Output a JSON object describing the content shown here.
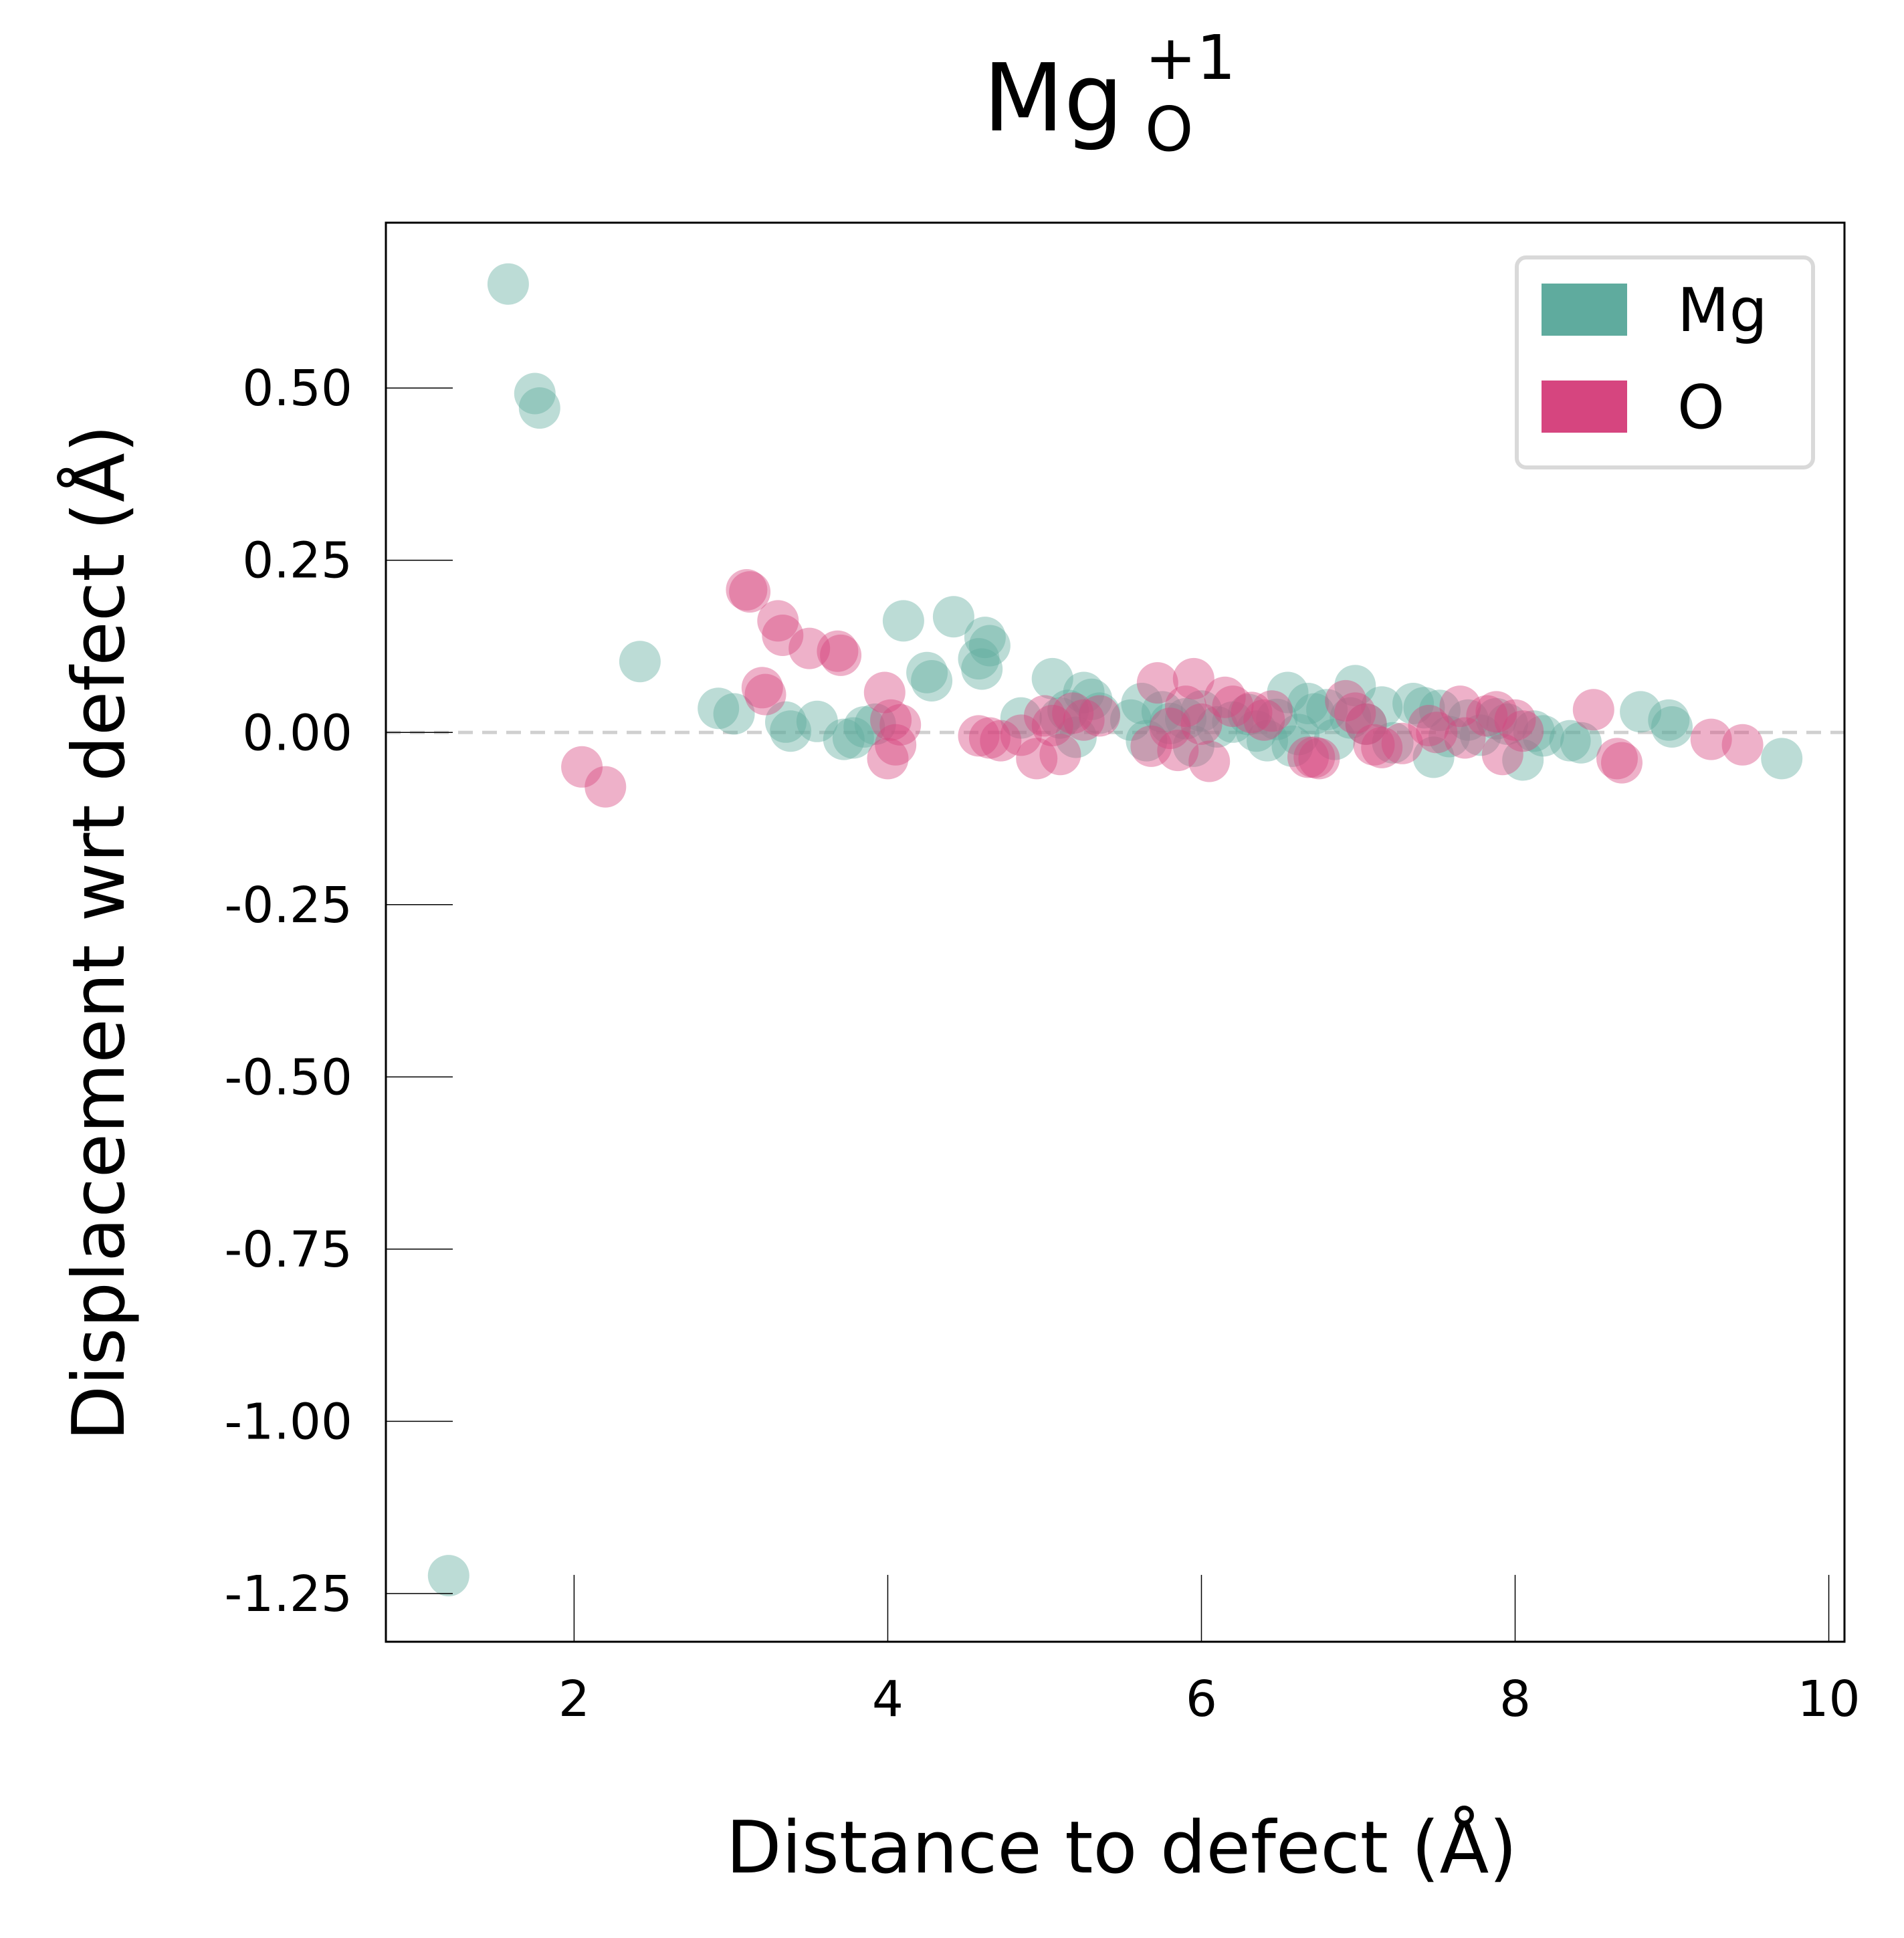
{
  "chart_data": {
    "type": "scatter",
    "title": {
      "base": "Mg",
      "superscript": "+1",
      "subscript": "O"
    },
    "xlabel": "Distance to defect (Å)",
    "ylabel": "Displacement wrt defect (Å)",
    "xlim": [
      0.8,
      10.1
    ],
    "ylim": [
      -1.32,
      0.74
    ],
    "xticks": [
      2,
      4,
      6,
      8,
      10
    ],
    "xtick_labels": [
      "2",
      "4",
      "6",
      "8",
      "10"
    ],
    "yticks": [
      0.5,
      0.25,
      0.0,
      -0.25,
      -0.5,
      -0.75,
      -1.0,
      -1.25
    ],
    "ytick_labels": [
      "0.50",
      "0.25",
      "0.00",
      "-0.25",
      "-0.50",
      "-0.75",
      "-1.00",
      "-1.25"
    ],
    "reference_line": {
      "y": 0,
      "style": "dashed",
      "color": "#d0d0d0"
    },
    "grid": false,
    "legend": {
      "placement": "top-right",
      "entries": [
        {
          "label": "Mg",
          "color": "#5fab9e"
        },
        {
          "label": "O",
          "color": "#d6457f"
        }
      ]
    },
    "series": [
      {
        "name": "Mg",
        "color": "#5fab9e",
        "points": [
          [
            1.2,
            -1.224
          ],
          [
            1.58,
            0.651
          ],
          [
            1.75,
            0.492
          ],
          [
            1.78,
            0.471
          ],
          [
            2.42,
            0.103
          ],
          [
            2.92,
            0.035
          ],
          [
            3.02,
            0.027
          ],
          [
            3.35,
            0.015
          ],
          [
            3.38,
            0.002
          ],
          [
            3.55,
            0.016
          ],
          [
            3.72,
            -0.01
          ],
          [
            3.78,
            -0.008
          ],
          [
            3.85,
            0.008
          ],
          [
            3.92,
            0.012
          ],
          [
            4.1,
            0.162
          ],
          [
            4.25,
            0.087
          ],
          [
            4.28,
            0.075
          ],
          [
            4.42,
            0.168
          ],
          [
            4.58,
            0.107
          ],
          [
            4.62,
            0.138
          ],
          [
            4.65,
            0.126
          ],
          [
            4.6,
            0.092
          ],
          [
            4.85,
            0.021
          ],
          [
            5.05,
            0.078
          ],
          [
            5.1,
            0.021
          ],
          [
            5.15,
            0.032
          ],
          [
            5.2,
            -0.007
          ],
          [
            5.25,
            0.058
          ],
          [
            5.3,
            0.048
          ],
          [
            5.35,
            0.028
          ],
          [
            5.55,
            0.018
          ],
          [
            5.62,
            0.042
          ],
          [
            5.65,
            -0.012
          ],
          [
            5.75,
            0.03
          ],
          [
            5.8,
            0.013
          ],
          [
            5.9,
            0.02
          ],
          [
            5.95,
            -0.02
          ],
          [
            6.0,
            0.031
          ],
          [
            6.1,
            0.008
          ],
          [
            6.2,
            0.015
          ],
          [
            6.3,
            0.026
          ],
          [
            6.35,
            0.002
          ],
          [
            6.42,
            -0.012
          ],
          [
            6.48,
            0.019
          ],
          [
            6.55,
            0.058
          ],
          [
            6.58,
            -0.02
          ],
          [
            6.62,
            -0.003
          ],
          [
            6.68,
            0.042
          ],
          [
            6.72,
            0.027
          ],
          [
            6.8,
            0.033
          ],
          [
            6.85,
            -0.01
          ],
          [
            6.95,
            0.021
          ],
          [
            6.98,
            0.068
          ],
          [
            7.05,
            0.012
          ],
          [
            7.15,
            0.037
          ],
          [
            7.22,
            -0.015
          ],
          [
            7.35,
            0.042
          ],
          [
            7.42,
            0.036
          ],
          [
            7.48,
            -0.036
          ],
          [
            7.52,
            0.032
          ],
          [
            7.58,
            -0.006
          ],
          [
            7.7,
            0.018
          ],
          [
            7.78,
            -0.004
          ],
          [
            7.88,
            0.02
          ],
          [
            7.95,
            0.012
          ],
          [
            8.05,
            -0.04
          ],
          [
            8.12,
            0.002
          ],
          [
            8.18,
            -0.005
          ],
          [
            8.35,
            -0.012
          ],
          [
            8.42,
            -0.015
          ],
          [
            8.8,
            0.03
          ],
          [
            8.98,
            0.018
          ],
          [
            9.0,
            0.008
          ],
          [
            9.7,
            -0.038
          ]
        ]
      },
      {
        "name": "O",
        "color": "#d6457f",
        "points": [
          [
            2.05,
            -0.05
          ],
          [
            2.2,
            -0.079
          ],
          [
            3.1,
            0.207
          ],
          [
            3.12,
            0.204
          ],
          [
            3.2,
            0.065
          ],
          [
            3.22,
            0.055
          ],
          [
            3.3,
            0.162
          ],
          [
            3.33,
            0.141
          ],
          [
            3.5,
            0.122
          ],
          [
            3.68,
            0.118
          ],
          [
            3.7,
            0.112
          ],
          [
            3.98,
            0.058
          ],
          [
            4.02,
            0.018
          ],
          [
            4.05,
            -0.018
          ],
          [
            4.0,
            -0.038
          ],
          [
            4.08,
            0.011
          ],
          [
            4.58,
            -0.005
          ],
          [
            4.65,
            -0.008
          ],
          [
            4.72,
            -0.012
          ],
          [
            4.85,
            -0.004
          ],
          [
            4.95,
            -0.038
          ],
          [
            5.0,
            0.024
          ],
          [
            5.05,
            0.01
          ],
          [
            5.1,
            -0.032
          ],
          [
            5.18,
            0.028
          ],
          [
            5.25,
            0.018
          ],
          [
            5.35,
            0.024
          ],
          [
            5.68,
            -0.02
          ],
          [
            5.72,
            0.072
          ],
          [
            5.8,
            0.006
          ],
          [
            5.85,
            -0.026
          ],
          [
            5.9,
            0.038
          ],
          [
            5.95,
            0.078
          ],
          [
            6.0,
            0.012
          ],
          [
            6.05,
            -0.042
          ],
          [
            6.15,
            0.051
          ],
          [
            6.2,
            0.038
          ],
          [
            6.32,
            0.029
          ],
          [
            6.4,
            0.018
          ],
          [
            6.45,
            0.031
          ],
          [
            6.68,
            -0.036
          ],
          [
            6.72,
            -0.036
          ],
          [
            6.75,
            -0.038
          ],
          [
            6.92,
            0.046
          ],
          [
            6.98,
            0.028
          ],
          [
            7.05,
            0.012
          ],
          [
            7.1,
            -0.018
          ],
          [
            7.15,
            -0.022
          ],
          [
            7.28,
            -0.016
          ],
          [
            7.45,
            0.01
          ],
          [
            7.5,
            0.0
          ],
          [
            7.65,
            0.038
          ],
          [
            7.68,
            -0.008
          ],
          [
            7.82,
            0.024
          ],
          [
            7.88,
            0.03
          ],
          [
            7.92,
            -0.032
          ],
          [
            8.0,
            0.018
          ],
          [
            8.05,
            0.002
          ],
          [
            8.5,
            0.033
          ],
          [
            8.65,
            -0.038
          ],
          [
            8.68,
            -0.044
          ],
          [
            9.25,
            -0.01
          ],
          [
            9.45,
            -0.018
          ]
        ]
      }
    ]
  }
}
